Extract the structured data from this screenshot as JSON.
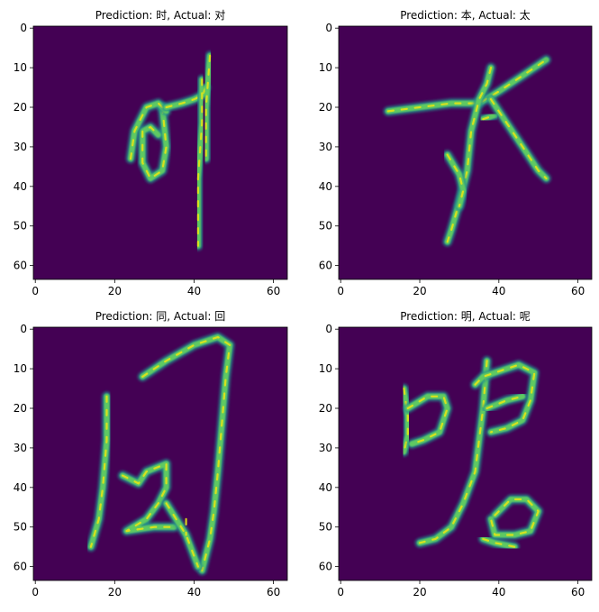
{
  "chart_data": [
    {
      "type": "heatmap",
      "title": "Prediction: 时, Actual: 对",
      "xlim": [
        0,
        63
      ],
      "ylim": [
        63,
        0
      ],
      "xticks": [
        "0",
        "20",
        "40",
        "60"
      ],
      "yticks": [
        "0",
        "10",
        "20",
        "30",
        "40",
        "50",
        "60"
      ],
      "background": "#440154",
      "strokes": [
        [
          [
            32,
            20
          ],
          [
            33,
            30
          ],
          [
            32,
            36
          ],
          [
            29,
            38
          ],
          [
            27,
            34
          ],
          [
            27,
            26
          ],
          [
            29,
            25
          ],
          [
            31,
            27
          ]
        ],
        [
          [
            24,
            33
          ],
          [
            25,
            26
          ],
          [
            28,
            20
          ],
          [
            31,
            19
          ],
          [
            33,
            21
          ]
        ],
        [
          [
            33,
            20
          ],
          [
            37,
            19
          ],
          [
            40,
            18
          ],
          [
            42,
            17
          ],
          [
            43,
            15
          ]
        ],
        [
          [
            44,
            7
          ],
          [
            43,
            20
          ],
          [
            43,
            33
          ]
        ],
        [
          [
            42,
            13
          ],
          [
            42,
            24
          ],
          [
            41,
            38
          ],
          [
            41,
            55
          ]
        ]
      ]
    },
    {
      "type": "heatmap",
      "title": "Prediction: 本, Actual: 太",
      "xlim": [
        0,
        63
      ],
      "ylim": [
        63,
        0
      ],
      "xticks": [
        "0",
        "20",
        "40",
        "60"
      ],
      "yticks": [
        "0",
        "10",
        "20",
        "30",
        "40",
        "50",
        "60"
      ],
      "background": "#440154",
      "strokes": [
        [
          [
            12,
            21
          ],
          [
            20,
            20
          ],
          [
            28,
            19
          ],
          [
            35,
            19
          ],
          [
            40,
            16
          ],
          [
            46,
            12
          ],
          [
            52,
            8
          ]
        ],
        [
          [
            38,
            10
          ],
          [
            37,
            14
          ],
          [
            35,
            18
          ],
          [
            33,
            26
          ],
          [
            32,
            36
          ],
          [
            30,
            44
          ],
          [
            28,
            51
          ],
          [
            27,
            54
          ]
        ],
        [
          [
            36,
            23
          ],
          [
            39,
            22
          ]
        ],
        [
          [
            38,
            18
          ],
          [
            42,
            24
          ],
          [
            46,
            30
          ],
          [
            50,
            36
          ],
          [
            52,
            38
          ]
        ],
        [
          [
            27,
            32
          ],
          [
            30,
            37
          ],
          [
            31,
            41
          ],
          [
            30,
            45
          ]
        ]
      ]
    },
    {
      "type": "heatmap",
      "title": "Prediction: 同, Actual: 回",
      "xlim": [
        0,
        63
      ],
      "ylim": [
        63,
        0
      ],
      "xticks": [
        "0",
        "20",
        "40",
        "60"
      ],
      "yticks": [
        "0",
        "10",
        "20",
        "30",
        "40",
        "50",
        "60"
      ],
      "background": "#440154",
      "strokes": [
        [
          [
            18,
            17
          ],
          [
            18,
            28
          ],
          [
            17,
            40
          ],
          [
            16,
            48
          ],
          [
            14,
            55
          ]
        ],
        [
          [
            27,
            12
          ],
          [
            33,
            8
          ],
          [
            40,
            4
          ],
          [
            46,
            2
          ],
          [
            49,
            4
          ],
          [
            48,
            12
          ],
          [
            47,
            24
          ],
          [
            46,
            36
          ],
          [
            45,
            46
          ],
          [
            44,
            53
          ],
          [
            42,
            61
          ]
        ],
        [
          [
            22,
            37
          ],
          [
            26,
            39
          ],
          [
            28,
            36
          ],
          [
            33,
            34
          ],
          [
            33,
            40
          ],
          [
            31,
            44
          ],
          [
            28,
            48
          ],
          [
            23,
            51
          ],
          [
            30,
            50
          ],
          [
            35,
            50
          ]
        ],
        [
          [
            33,
            44
          ],
          [
            38,
            52
          ],
          [
            41,
            60
          ]
        ],
        [
          [
            38,
            48
          ],
          [
            38,
            52
          ]
        ]
      ]
    },
    {
      "type": "heatmap",
      "title": "Prediction: 明, Actual: 呢",
      "xlim": [
        0,
        63
      ],
      "ylim": [
        63,
        0
      ],
      "xticks": [
        "0",
        "20",
        "40",
        "60"
      ],
      "yticks": [
        "0",
        "10",
        "20",
        "30",
        "40",
        "50",
        "60"
      ],
      "background": "#440154",
      "strokes": [
        [
          [
            16,
            15
          ],
          [
            17,
            22
          ],
          [
            17,
            27
          ],
          [
            16,
            31
          ]
        ],
        [
          [
            17,
            20
          ],
          [
            22,
            17
          ],
          [
            26,
            17
          ],
          [
            27,
            20
          ],
          [
            25,
            26
          ],
          [
            21,
            28
          ],
          [
            18,
            29
          ]
        ],
        [
          [
            37,
            8
          ],
          [
            36,
            20
          ],
          [
            35,
            28
          ],
          [
            34,
            36
          ],
          [
            31,
            44
          ],
          [
            28,
            50
          ],
          [
            24,
            53
          ],
          [
            20,
            54
          ]
        ],
        [
          [
            34,
            14
          ],
          [
            36,
            12
          ],
          [
            39,
            11
          ],
          [
            45,
            9
          ],
          [
            49,
            11
          ],
          [
            48,
            18
          ],
          [
            46,
            23
          ],
          [
            42,
            25
          ],
          [
            38,
            26
          ]
        ],
        [
          [
            37,
            20
          ],
          [
            42,
            18
          ],
          [
            46,
            17
          ]
        ],
        [
          [
            39,
            47
          ],
          [
            43,
            43
          ],
          [
            47,
            43
          ],
          [
            50,
            46
          ],
          [
            48,
            51
          ],
          [
            44,
            52
          ],
          [
            39,
            52
          ],
          [
            38,
            48
          ]
        ],
        [
          [
            36,
            53
          ],
          [
            39,
            54
          ],
          [
            44,
            55
          ]
        ]
      ]
    }
  ]
}
